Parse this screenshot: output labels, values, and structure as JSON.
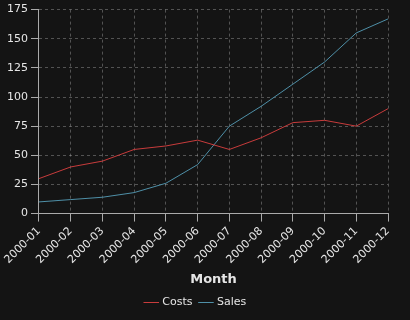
{
  "chart_data": {
    "type": "line",
    "x_label": "Month",
    "categories": [
      "2000-01",
      "2000-02",
      "2000-03",
      "2000-04",
      "2000-05",
      "2000-06",
      "2000-07",
      "2000-08",
      "2000-09",
      "2000-10",
      "2000-11",
      "2000-12"
    ],
    "series": [
      {
        "name": "Costs",
        "color": "#c83c3c",
        "values": [
          30,
          40,
          45,
          55,
          58,
          63,
          55,
          65,
          78,
          80,
          75,
          90
        ]
      },
      {
        "name": "Sales",
        "color": "#4f90a8",
        "values": [
          10,
          12,
          14,
          18,
          26,
          42,
          75,
          92,
          111,
          130,
          155,
          167
        ]
      }
    ],
    "ylim": [
      0,
      175
    ],
    "yticks": [
      0,
      25,
      50,
      75,
      100,
      125,
      150,
      175
    ],
    "grid": true,
    "legend": "bottom"
  }
}
